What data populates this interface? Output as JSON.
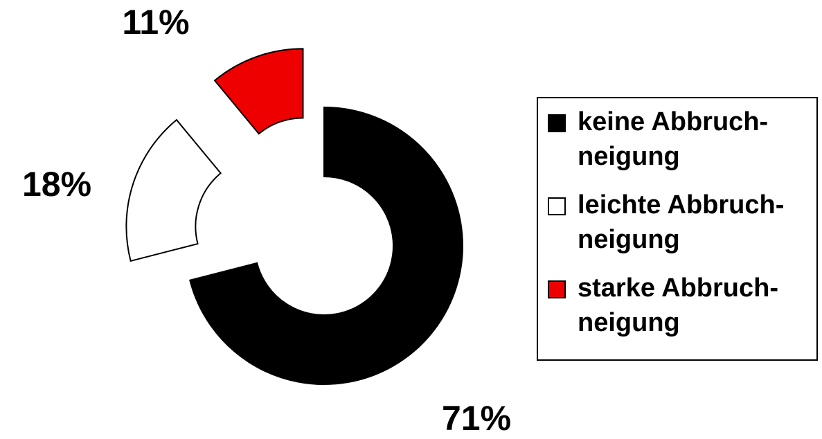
{
  "chart_data": {
    "type": "pie",
    "categories": [
      "keine Abbruch-\nneigung",
      "leichte Abbruch-\nneigung",
      "starke Abbruch-\nneigung"
    ],
    "values": [
      71,
      18,
      11
    ],
    "value_labels": [
      "71%",
      "18%",
      "11%"
    ],
    "colors": [
      "#000000",
      "#ffffff",
      "#ee0000"
    ],
    "donut": true,
    "legend": "right"
  }
}
